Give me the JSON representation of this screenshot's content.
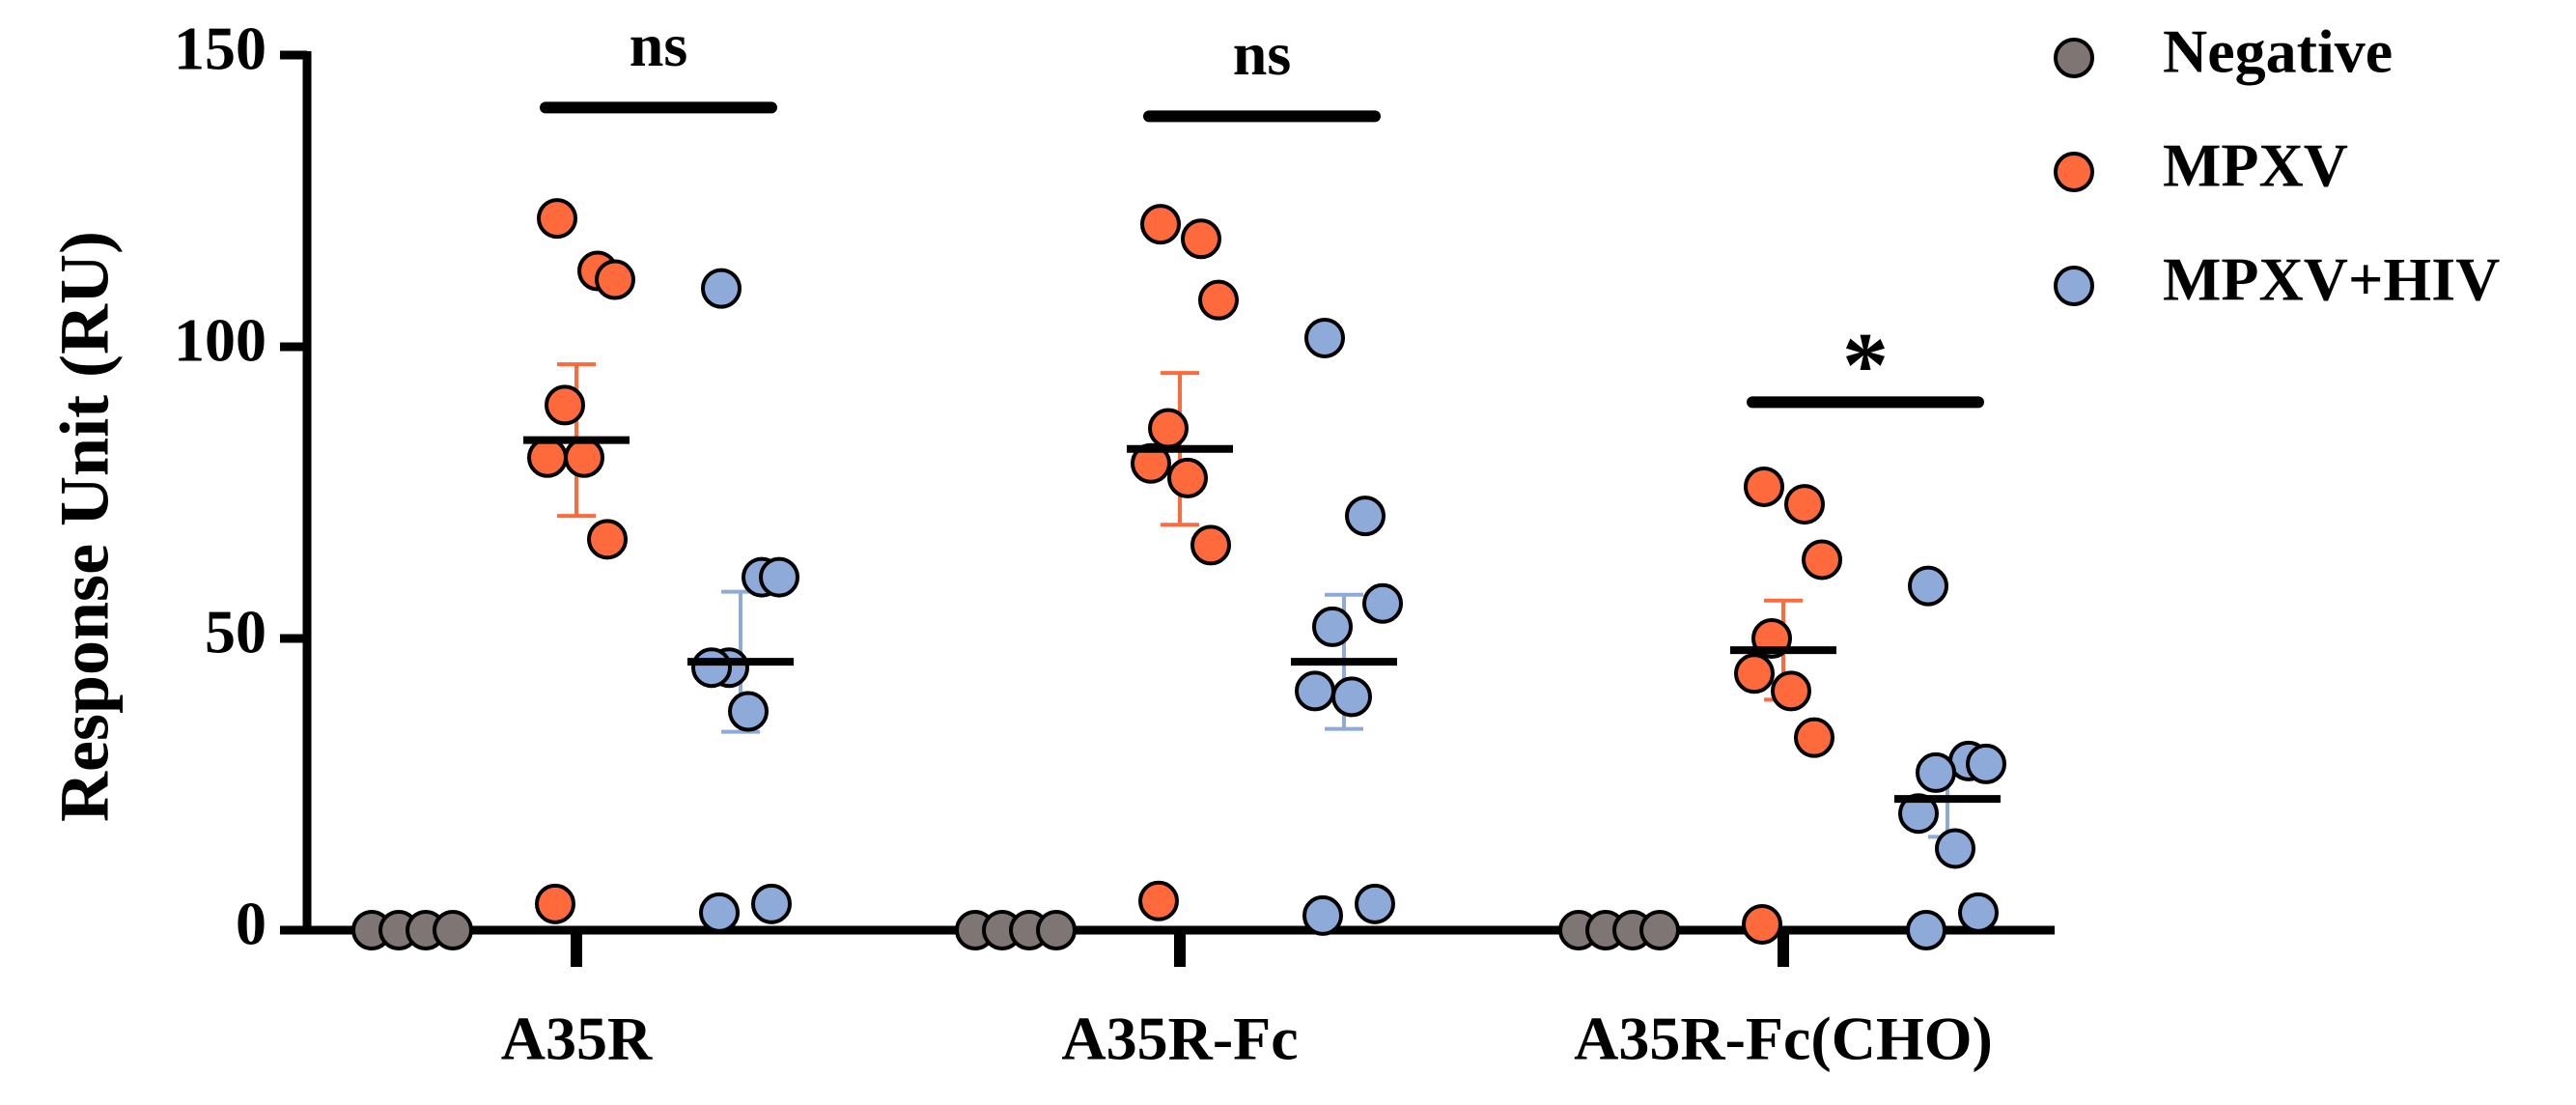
{
  "chart_data": {
    "type": "scatter",
    "ylabel": "Response Unit (RU)",
    "ylim": [
      0,
      150
    ],
    "yticks": [
      0,
      50,
      100,
      150
    ],
    "categories": [
      "A35R",
      "A35R-Fc",
      "A35R-Fc(CHO)"
    ],
    "series": [
      {
        "name": "Negative",
        "color": "#7f7575",
        "points": [
          [
            0,
            0,
            0,
            0
          ],
          [
            0,
            0,
            0,
            0
          ],
          [
            0,
            0,
            0,
            0
          ]
        ],
        "mean": [
          null,
          null,
          null
        ],
        "sem": [
          null,
          null,
          null
        ]
      },
      {
        "name": "MPXV",
        "color": "#ff6a3d",
        "points": [
          [
            122,
            113,
            111.5,
            90,
            81,
            81,
            67,
            4.5
          ],
          [
            121,
            118.5,
            108,
            86,
            80,
            77.5,
            66,
            5
          ],
          [
            76,
            73,
            63.5,
            50,
            44,
            41,
            33,
            1
          ]
        ],
        "mean": [
          84,
          82.5,
          48
        ],
        "sem": [
          13,
          13,
          8.5
        ]
      },
      {
        "name": "MPXV+HIV",
        "color": "#8eaad9",
        "points": [
          [
            110,
            60.5,
            60.5,
            45,
            45,
            37.5,
            4.5,
            3
          ],
          [
            101.5,
            71,
            56,
            52,
            41,
            40,
            4.5,
            2.5
          ],
          [
            59,
            29,
            28.5,
            27,
            20,
            14,
            3,
            0
          ]
        ],
        "mean": [
          46,
          46,
          22.5
        ],
        "sem": [
          12,
          11.5,
          6.5
        ]
      }
    ],
    "significance": [
      {
        "group": 0,
        "label": "ns",
        "y": 141
      },
      {
        "group": 1,
        "label": "ns",
        "y": 139.5
      },
      {
        "group": 2,
        "label": "*",
        "y": 90.5
      }
    ],
    "legend_position": "top-right"
  }
}
